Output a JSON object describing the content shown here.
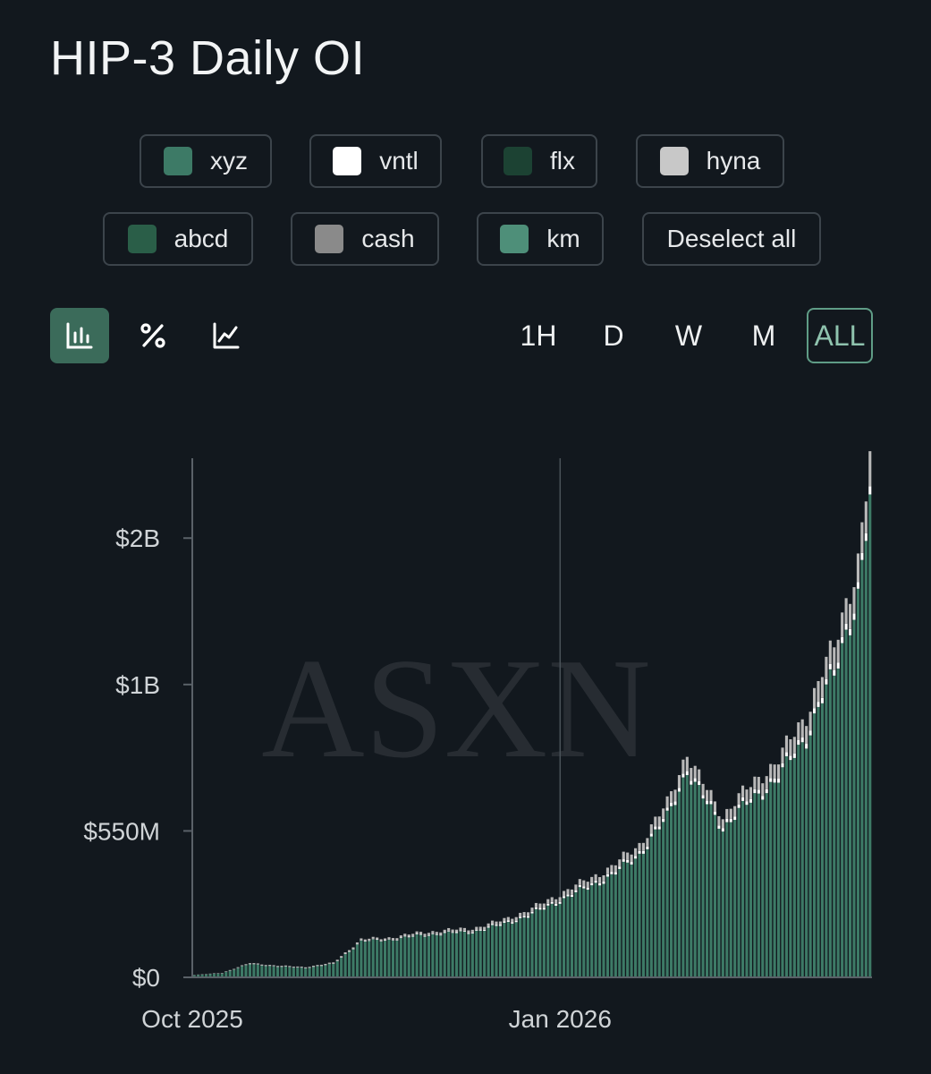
{
  "title": "HIP-3 Daily OI",
  "legend": [
    {
      "label": "xyz",
      "color": "#3d7a66"
    },
    {
      "label": "vntl",
      "color": "#ffffff"
    },
    {
      "label": "flx",
      "color": "#1c4233"
    },
    {
      "label": "hyna",
      "color": "#c8c8c8"
    },
    {
      "label": "abcd",
      "color": "#2a5e48"
    },
    {
      "label": "cash",
      "color": "#8a8a8a"
    },
    {
      "label": "km",
      "color": "#4e8f79"
    }
  ],
  "deselect_label": "Deselect all",
  "view_modes": [
    {
      "icon": "bar-chart-icon",
      "active": true
    },
    {
      "icon": "percent-icon",
      "active": false
    },
    {
      "icon": "line-chart-icon",
      "active": false
    }
  ],
  "ranges": [
    {
      "label": "1H",
      "active": false
    },
    {
      "label": "D",
      "active": false
    },
    {
      "label": "W",
      "active": false
    },
    {
      "label": "M",
      "active": false
    },
    {
      "label": "ALL",
      "active": true
    }
  ],
  "watermark": "ASXN",
  "chart_data": {
    "type": "bar",
    "stacked": true,
    "x_range": [
      "2025-10-01",
      "2026-03-20"
    ],
    "x_ticks": [
      {
        "label": "Oct 2025",
        "date": "2025-10-01"
      },
      {
        "label": "Jan 2026",
        "date": "2026-01-01"
      }
    ],
    "y_range_millions": [
      0,
      1950
    ],
    "y_ticks": [
      {
        "label": "$0",
        "value": 0
      },
      {
        "label": "$550M",
        "value": 550
      },
      {
        "label": "$1B",
        "value": 1100
      },
      {
        "label": "$2B",
        "value": 1650
      },
      {
        "label": "$2B",
        "value": 2100
      }
    ],
    "crosshair_date": "2026-01-01",
    "unit": "millions USD",
    "series_colors": {
      "base": "#3d7a66",
      "white": "#ffffff",
      "gray": "#b8b8b8"
    },
    "series": [
      {
        "name": "xyz",
        "x": [
          "2025-10-01",
          "2025-10-08",
          "2025-10-15",
          "2025-10-22",
          "2025-10-29",
          "2025-11-05",
          "2025-11-12",
          "2025-11-19",
          "2025-11-26",
          "2025-12-03",
          "2025-12-10",
          "2025-12-17",
          "2025-12-24",
          "2025-12-31",
          "2026-01-07",
          "2026-01-14",
          "2026-01-21",
          "2026-01-28",
          "2026-02-02",
          "2026-02-04",
          "2026-02-07",
          "2026-02-11",
          "2026-02-14",
          "2026-02-18",
          "2026-02-25",
          "2026-03-04",
          "2026-03-08",
          "2026-03-11",
          "2026-03-14",
          "2026-03-17",
          "2026-03-20"
        ],
        "y": [
          8,
          15,
          50,
          40,
          35,
          50,
          135,
          140,
          155,
          165,
          170,
          195,
          230,
          280,
          330,
          380,
          460,
          600,
          780,
          720,
          650,
          560,
          610,
          660,
          750,
          900,
          1050,
          1130,
          1300,
          1430,
          1780
        ]
      },
      {
        "name": "hyna",
        "x": [
          "2025-10-01",
          "2025-10-08",
          "2025-10-15",
          "2025-10-22",
          "2025-10-29",
          "2025-11-05",
          "2025-11-12",
          "2025-11-19",
          "2025-11-26",
          "2025-12-03",
          "2025-12-10",
          "2025-12-17",
          "2025-12-24",
          "2025-12-31",
          "2026-01-07",
          "2026-01-14",
          "2026-01-21",
          "2026-01-28",
          "2026-02-02",
          "2026-02-04",
          "2026-02-07",
          "2026-02-11",
          "2026-02-14",
          "2026-02-18",
          "2026-02-25",
          "2026-03-04",
          "2026-03-08",
          "2026-03-11",
          "2026-03-14",
          "2026-03-17",
          "2026-03-20"
        ],
        "y": [
          1,
          2,
          3,
          3,
          3,
          4,
          6,
          7,
          8,
          9,
          10,
          12,
          15,
          18,
          22,
          25,
          30,
          40,
          55,
          45,
          40,
          35,
          40,
          45,
          55,
          70,
          80,
          85,
          95,
          105,
          130
        ]
      },
      {
        "name": "vntl",
        "x": [
          "2025-10-01",
          "2025-10-08",
          "2025-10-15",
          "2025-10-22",
          "2025-10-29",
          "2025-11-05",
          "2025-11-12",
          "2025-11-19",
          "2025-11-26",
          "2025-12-03",
          "2025-12-10",
          "2025-12-17",
          "2025-12-24",
          "2025-12-31",
          "2026-01-07",
          "2026-01-14",
          "2026-01-21",
          "2026-01-28",
          "2026-02-02",
          "2026-02-04",
          "2026-02-07",
          "2026-02-11",
          "2026-02-14",
          "2026-02-18",
          "2026-02-25",
          "2026-03-04",
          "2026-03-08",
          "2026-03-11",
          "2026-03-14",
          "2026-03-17",
          "2026-03-20"
        ],
        "y": [
          0,
          0,
          1,
          1,
          1,
          1,
          2,
          2,
          3,
          3,
          4,
          5,
          6,
          7,
          8,
          9,
          10,
          12,
          15,
          14,
          13,
          12,
          13,
          14,
          15,
          18,
          20,
          21,
          23,
          25,
          30
        ]
      }
    ]
  }
}
